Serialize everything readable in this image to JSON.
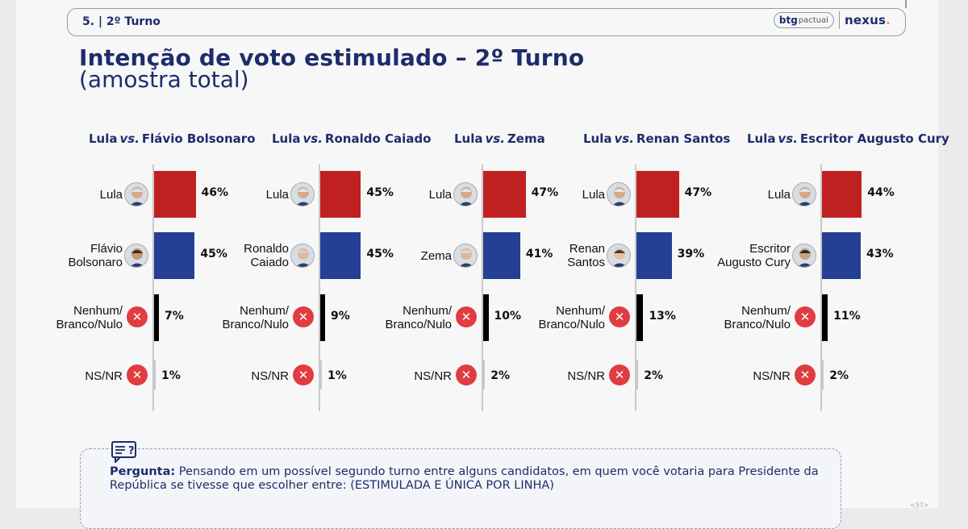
{
  "header": {
    "section": "5. | 2º Turno",
    "btg_bold": "btg",
    "btg_light": "pactual",
    "nexus": "nexus",
    "nexus_dot": "."
  },
  "title": "Intenção de voto estimulado – 2º Turno",
  "subtitle": "(amostra total)",
  "colors": {
    "primary": "#1d2c6b",
    "lula": "#bf2121",
    "opponent": "#243f93",
    "none": "#000000",
    "nsnr": "#c8c8c8",
    "x_icon": "#e03c41"
  },
  "chart_data": [
    {
      "type": "bar",
      "title_a": "Lula",
      "vs": "vs.",
      "title_b": "Flávio Bolsonaro",
      "categories": [
        "Lula",
        "Flávio Bolsonaro",
        "Nenhum/ Branco/Nulo",
        "NS/NR"
      ],
      "values": [
        46,
        45,
        7,
        1
      ],
      "value_labels": [
        "46%",
        "45%",
        "7%",
        "1%"
      ],
      "row_labels": [
        [
          "Lula"
        ],
        [
          "Flávio",
          "Bolsonaro"
        ],
        [
          "Nenhum/",
          "Branco/Nulo"
        ],
        [
          "NS/NR"
        ]
      ]
    },
    {
      "type": "bar",
      "title_a": "Lula",
      "vs": "vs.",
      "title_b": "Ronaldo Caiado",
      "categories": [
        "Lula",
        "Ronaldo Caiado",
        "Nenhum/ Branco/Nulo",
        "NS/NR"
      ],
      "values": [
        45,
        45,
        9,
        1
      ],
      "value_labels": [
        "45%",
        "45%",
        "9%",
        "1%"
      ],
      "row_labels": [
        [
          "Lula"
        ],
        [
          "Ronaldo",
          "Caiado"
        ],
        [
          "Nenhum/",
          "Branco/Nulo"
        ],
        [
          "NS/NR"
        ]
      ]
    },
    {
      "type": "bar",
      "title_a": "Lula",
      "vs": "vs.",
      "title_b": "Zema",
      "categories": [
        "Lula",
        "Zema",
        "Nenhum/ Branco/Nulo",
        "NS/NR"
      ],
      "values": [
        47,
        41,
        10,
        2
      ],
      "value_labels": [
        "47%",
        "41%",
        "10%",
        "2%"
      ],
      "row_labels": [
        [
          "Lula"
        ],
        [
          "Zema"
        ],
        [
          "Nenhum/",
          "Branco/Nulo"
        ],
        [
          "NS/NR"
        ]
      ]
    },
    {
      "type": "bar",
      "title_a": "Lula",
      "vs": "vs.",
      "title_b": "Renan Santos",
      "categories": [
        "Lula",
        "Renan Santos",
        "Nenhum/ Branco/Nulo",
        "NS/NR"
      ],
      "values": [
        47,
        39,
        13,
        2
      ],
      "value_labels": [
        "47%",
        "39%",
        "13%",
        "2%"
      ],
      "row_labels": [
        [
          "Lula"
        ],
        [
          "Renan",
          "Santos"
        ],
        [
          "Nenhum/",
          "Branco/Nulo"
        ],
        [
          "NS/NR"
        ]
      ]
    },
    {
      "type": "bar",
      "title_a": "Lula",
      "vs": "vs.",
      "title_b": "Escritor Augusto Cury",
      "categories": [
        "Lula",
        "Escritor Augusto Cury",
        "Nenhum/ Branco/Nulo",
        "NS/NR"
      ],
      "values": [
        44,
        43,
        11,
        2
      ],
      "value_labels": [
        "44%",
        "43%",
        "11%",
        "2%"
      ],
      "row_labels": [
        [
          "Lula"
        ],
        [
          "Escritor",
          "Augusto Cury"
        ],
        [
          "Nenhum/",
          "Branco/Nulo"
        ],
        [
          "NS/NR"
        ]
      ]
    }
  ],
  "question": {
    "label": "Pergunta:",
    "text": "Pensando em um possível segundo turno entre alguns candidatos, em quem você votaria para Presidente da República se tivesse que escolher entre: (ESTIMULADA E ÚNICA POR LINHA)"
  },
  "page_number": "<57>"
}
